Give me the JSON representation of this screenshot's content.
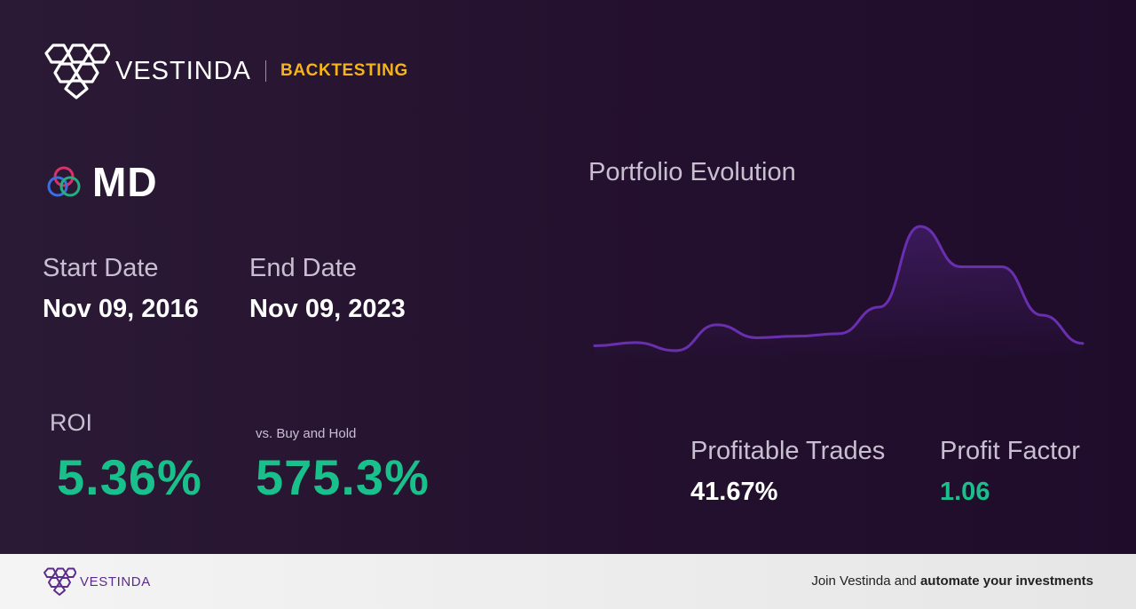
{
  "brand": {
    "name": "VESTINDA",
    "tag": "BACKTESTING"
  },
  "ticker": {
    "symbol": "MD",
    "logo": "circles-logo-icon"
  },
  "dates": {
    "start_label": "Start Date",
    "start_value": "Nov 09, 2016",
    "end_label": "End Date",
    "end_value": "Nov 09, 2023"
  },
  "roi": {
    "label": "ROI",
    "value": "5.36%"
  },
  "buy_hold": {
    "label": "vs. Buy and Hold",
    "value": "575.3%"
  },
  "profitable_trades": {
    "label": "Profitable Trades",
    "value": "41.67%"
  },
  "profit_factor": {
    "label": "Profit Factor",
    "value": "1.06"
  },
  "chart": {
    "title": "Portfolio Evolution",
    "line_color": "#6a2fb0",
    "values": [
      2,
      6,
      -4,
      28,
      12,
      14,
      17,
      50,
      150,
      100,
      100,
      40,
      5
    ]
  },
  "footer": {
    "brand": "VESTINDA",
    "cta_prefix": "Join Vestinda and",
    "cta_bold": "automate your investments"
  },
  "colors": {
    "accent_green": "#19c08b",
    "accent_gold": "#f4b41a",
    "brand_purple": "#5b2c8a"
  }
}
